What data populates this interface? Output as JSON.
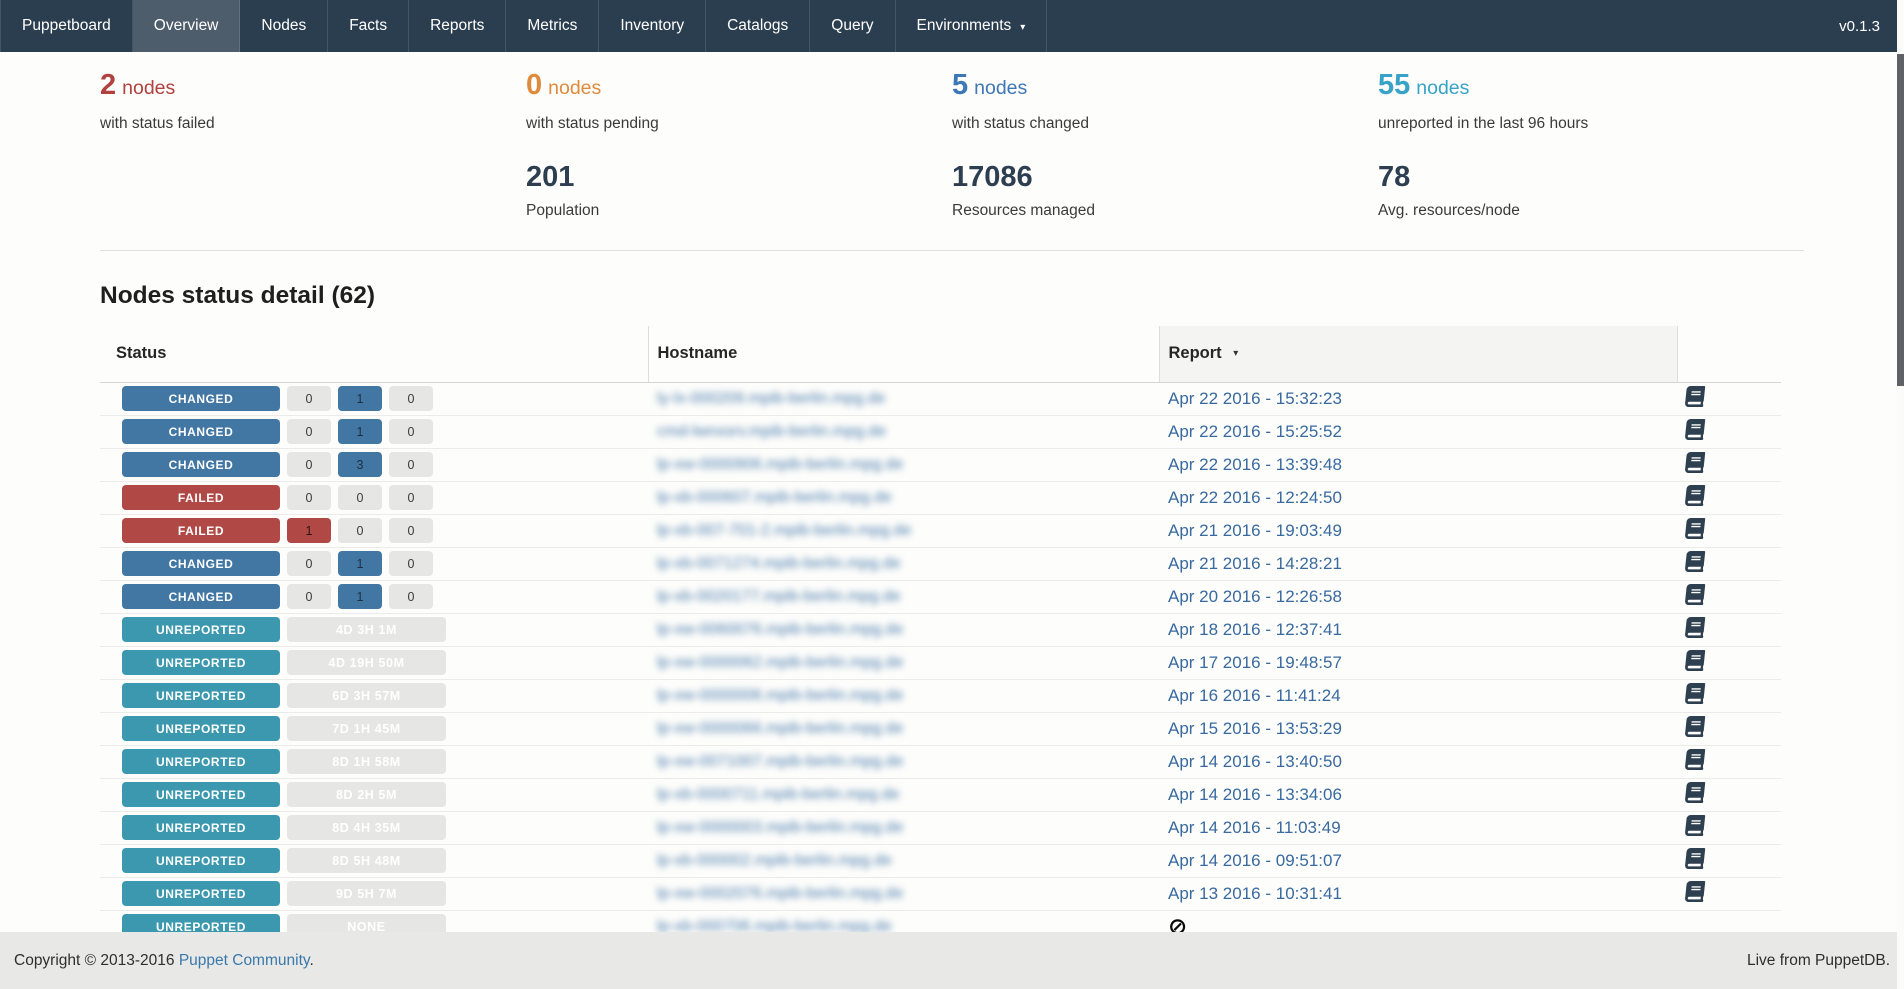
{
  "navbar": {
    "brand": "Puppetboard",
    "items": [
      {
        "label": "Overview",
        "active": true
      },
      {
        "label": "Nodes"
      },
      {
        "label": "Facts"
      },
      {
        "label": "Reports"
      },
      {
        "label": "Metrics"
      },
      {
        "label": "Inventory"
      },
      {
        "label": "Catalogs"
      },
      {
        "label": "Query"
      },
      {
        "label": "Environments",
        "dropdown": true
      }
    ],
    "version": "v0.1.3"
  },
  "icons": {
    "caret_down": "▾",
    "sort_desc": "▾",
    "no_report": "⊘"
  },
  "colors": {
    "navbar_bg": "#2b3e50",
    "navbar_active_bg": "#4e5d6b",
    "failed": "#b0413e",
    "pending": "#e08a3b",
    "changed": "#3d77b5",
    "unreported": "#36a3c7",
    "badge_changed": "#4277a4",
    "badge_failed": "#b04946",
    "badge_unreported": "#3b98ae",
    "metric_number": "#2c3e50",
    "link": "#38699f",
    "footer_bg": "#e8e9e6"
  },
  "stats": {
    "cards": [
      {
        "value": "2",
        "unit": "nodes",
        "desc": "with status failed"
      },
      {
        "value": "0",
        "unit": "nodes",
        "desc": "with status pending"
      },
      {
        "value": "5",
        "unit": "nodes",
        "desc": "with status changed"
      },
      {
        "value": "55",
        "unit": "nodes",
        "desc": "unreported in the last 96 hours"
      }
    ],
    "metrics": [
      {
        "value": "201",
        "label": "Population"
      },
      {
        "value": "17086",
        "label": "Resources managed"
      },
      {
        "value": "78",
        "label": "Avg. resources/node"
      }
    ]
  },
  "section": {
    "title": "Nodes status detail (62)"
  },
  "table": {
    "columns": {
      "status": "Status",
      "hostname": "Hostname",
      "report": "Report"
    },
    "rows": [
      {
        "status": "CHANGED",
        "counts": [
          "0",
          "1",
          "0"
        ],
        "highlight": 1,
        "hostname": "ly-lx-000209.mpib-berlin.mpg.de",
        "report": "Apr 22 2016 - 15:32:23"
      },
      {
        "status": "CHANGED",
        "counts": [
          "0",
          "1",
          "0"
        ],
        "highlight": 1,
        "hostname": "cmd-lwnxsrv.mpib-berlin.mpg.de",
        "report": "Apr 22 2016 - 15:25:52"
      },
      {
        "status": "CHANGED",
        "counts": [
          "0",
          "3",
          "0"
        ],
        "highlight": 1,
        "hostname": "lp-xw-0000906.mpib-berlin.mpg.de",
        "report": "Apr 22 2016 - 13:39:48"
      },
      {
        "status": "FAILED",
        "counts": [
          "0",
          "0",
          "0"
        ],
        "highlight": -1,
        "hostname": "lp-xb-000607.mpib-berlin.mpg.de",
        "report": "Apr 22 2016 - 12:24:50"
      },
      {
        "status": "FAILED",
        "counts": [
          "1",
          "0",
          "0"
        ],
        "highlight": 0,
        "hostname": "lp-xb-007-701-2.mpib-berlin.mpg.de",
        "report": "Apr 21 2016 - 19:03:49"
      },
      {
        "status": "CHANGED",
        "counts": [
          "0",
          "1",
          "0"
        ],
        "highlight": 1,
        "hostname": "lp-xb-0071274.mpib-berlin.mpg.de",
        "report": "Apr 21 2016 - 14:28:21"
      },
      {
        "status": "CHANGED",
        "counts": [
          "0",
          "1",
          "0"
        ],
        "highlight": 1,
        "hostname": "lp-xb-0020177.mpib-berlin.mpg.de",
        "report": "Apr 20 2016 - 12:26:58"
      },
      {
        "status": "UNREPORTED",
        "duration": "4D 3H 1M",
        "hostname": "lp-xw-0060076.mpib-berlin.mpg.de",
        "report": "Apr 18 2016 - 12:37:41"
      },
      {
        "status": "UNREPORTED",
        "duration": "4D 19H 50M",
        "hostname": "lp-xw-0000062.mpib-berlin.mpg.de",
        "report": "Apr 17 2016 - 19:48:57"
      },
      {
        "status": "UNREPORTED",
        "duration": "6D 3H 57M",
        "hostname": "lp-xw-0000006.mpib-berlin.mpg.de",
        "report": "Apr 16 2016 - 11:41:24"
      },
      {
        "status": "UNREPORTED",
        "duration": "7D 1H 45M",
        "hostname": "lp-xw-0000066.mpib-berlin.mpg.de",
        "report": "Apr 15 2016 - 13:53:29"
      },
      {
        "status": "UNREPORTED",
        "duration": "8D 1H 58M",
        "hostname": "lp-xw-0071007.mpib-berlin.mpg.de",
        "report": "Apr 14 2016 - 13:40:50"
      },
      {
        "status": "UNREPORTED",
        "duration": "8D 2H 5M",
        "hostname": "lp-xb-0000711.mpib-berlin.mpg.de",
        "report": "Apr 14 2016 - 13:34:06"
      },
      {
        "status": "UNREPORTED",
        "duration": "8D 4H 35M",
        "hostname": "lp-xw-0000003.mpib-berlin.mpg.de",
        "report": "Apr 14 2016 - 11:03:49"
      },
      {
        "status": "UNREPORTED",
        "duration": "8D 5H 48M",
        "hostname": "lp-xb-000002.mpib-berlin.mpg.de",
        "report": "Apr 14 2016 - 09:51:07"
      },
      {
        "status": "UNREPORTED",
        "duration": "9D 5H 7M",
        "hostname": "lp-xw-0002076.mpib-berlin.mpg.de",
        "report": "Apr 13 2016 - 10:31:41"
      },
      {
        "status": "UNREPORTED",
        "duration": "NONE",
        "hostname": "lp-xb-000706.mpib-berlin.mpg.de",
        "report": null
      }
    ]
  },
  "footer": {
    "copyright": "Copyright © 2013-2016",
    "community_link": "Puppet Community",
    "period": ".",
    "live": "Live from PuppetDB."
  }
}
